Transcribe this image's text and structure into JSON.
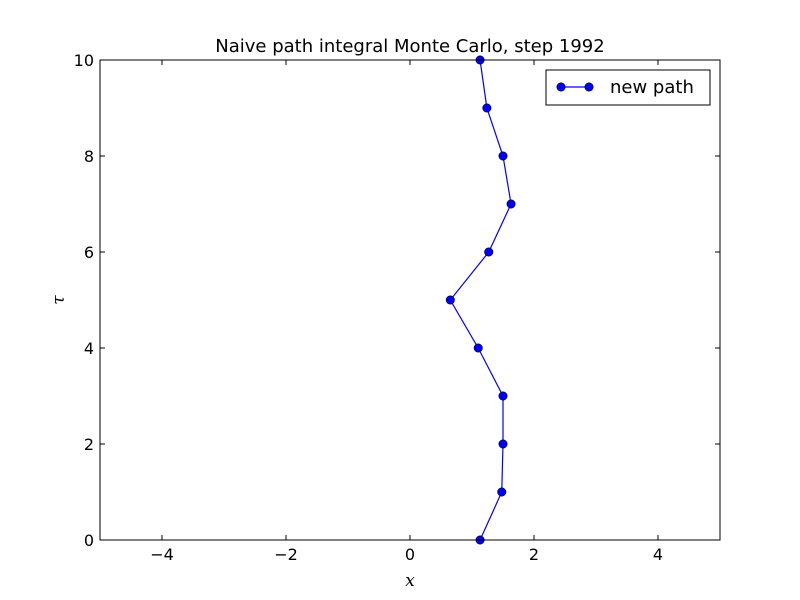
{
  "chart_data": {
    "type": "line",
    "title": "Naive path integral Monte Carlo, step 1992",
    "xlabel": "x",
    "ylabel": "τ",
    "xlim": [
      -5,
      5
    ],
    "ylim": [
      0,
      10
    ],
    "xticks": [
      -4,
      -2,
      0,
      2,
      4
    ],
    "xtick_labels": [
      "−4",
      "−2",
      "0",
      "2",
      "4"
    ],
    "yticks": [
      0,
      2,
      4,
      6,
      8,
      10
    ],
    "ytick_labels": [
      "0",
      "2",
      "4",
      "6",
      "8",
      "10"
    ],
    "grid": false,
    "legend": {
      "position": "top-right"
    },
    "series": [
      {
        "name": "new path",
        "color": "#0000ff",
        "marker": "circle",
        "x": [
          1.13,
          1.48,
          1.5,
          1.5,
          1.1,
          0.65,
          1.27,
          1.63,
          1.5,
          1.24,
          1.13
        ],
        "y": [
          0,
          1,
          2,
          3,
          4,
          5,
          6,
          7,
          8,
          9,
          10
        ]
      }
    ]
  }
}
